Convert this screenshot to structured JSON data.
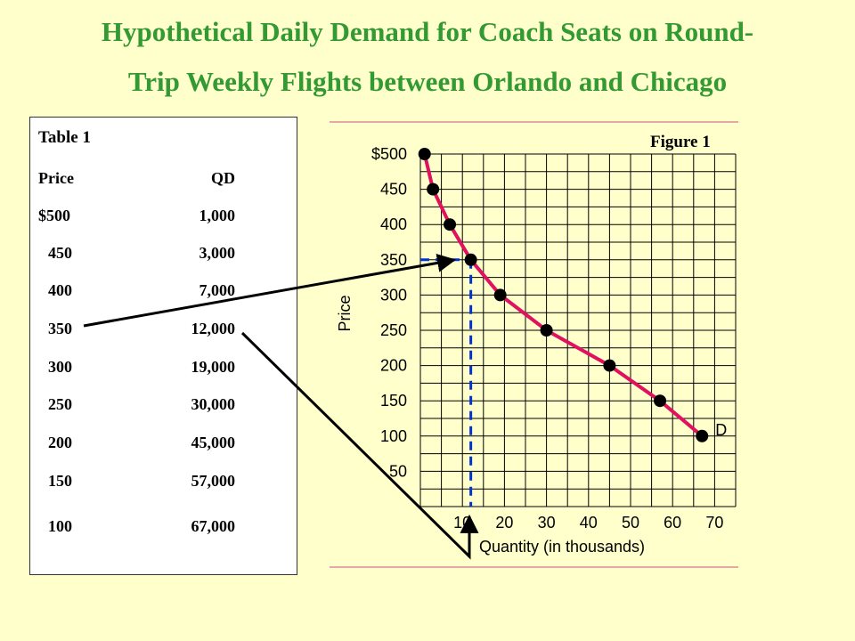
{
  "title": {
    "line1": "Hypothetical Daily Demand for Coach Seats on Round-",
    "line2": "Trip Weekly Flights between Orlando and Chicago"
  },
  "table": {
    "caption": "Table 1",
    "headers": [
      "Price",
      "QD"
    ],
    "rows": [
      [
        "$500",
        "1,000"
      ],
      [
        "450",
        "3,000"
      ],
      [
        "400",
        "7,000"
      ],
      [
        "350",
        "12,000"
      ],
      [
        "300",
        "19,000"
      ],
      [
        "250",
        "30,000"
      ],
      [
        "200",
        "45,000"
      ],
      [
        "150",
        "57,000"
      ],
      [
        "100",
        "67,000"
      ]
    ]
  },
  "colors": {
    "background": "#FFFFCC",
    "title": "#339933",
    "curve": "#E0115F",
    "dashed": "#0033CC",
    "grid": "#000000"
  },
  "chart_data": {
    "type": "line",
    "figure_label": "Figure 1",
    "xlabel": "Quantity (in thousands)",
    "ylabel": "Price",
    "xlim": [
      0,
      75
    ],
    "ylim": [
      0,
      500
    ],
    "x_ticks": [
      10,
      20,
      30,
      40,
      50,
      60,
      70
    ],
    "x_tick_labels": [
      "10",
      "20",
      "30",
      "40",
      "50",
      "60",
      "70"
    ],
    "y_ticks": [
      50,
      100,
      150,
      200,
      250,
      300,
      350,
      400,
      450,
      500
    ],
    "y_tick_labels": [
      "50",
      "100",
      "150",
      "200",
      "250",
      "300",
      "350",
      "400",
      "450",
      "$500"
    ],
    "grid": true,
    "series": [
      {
        "name": "D",
        "x": [
          1,
          3,
          7,
          12,
          19,
          30,
          45,
          57,
          67
        ],
        "y": [
          500,
          450,
          400,
          350,
          300,
          250,
          200,
          150,
          100
        ]
      }
    ],
    "highlight_point": {
      "x": 12,
      "y": 350
    }
  }
}
